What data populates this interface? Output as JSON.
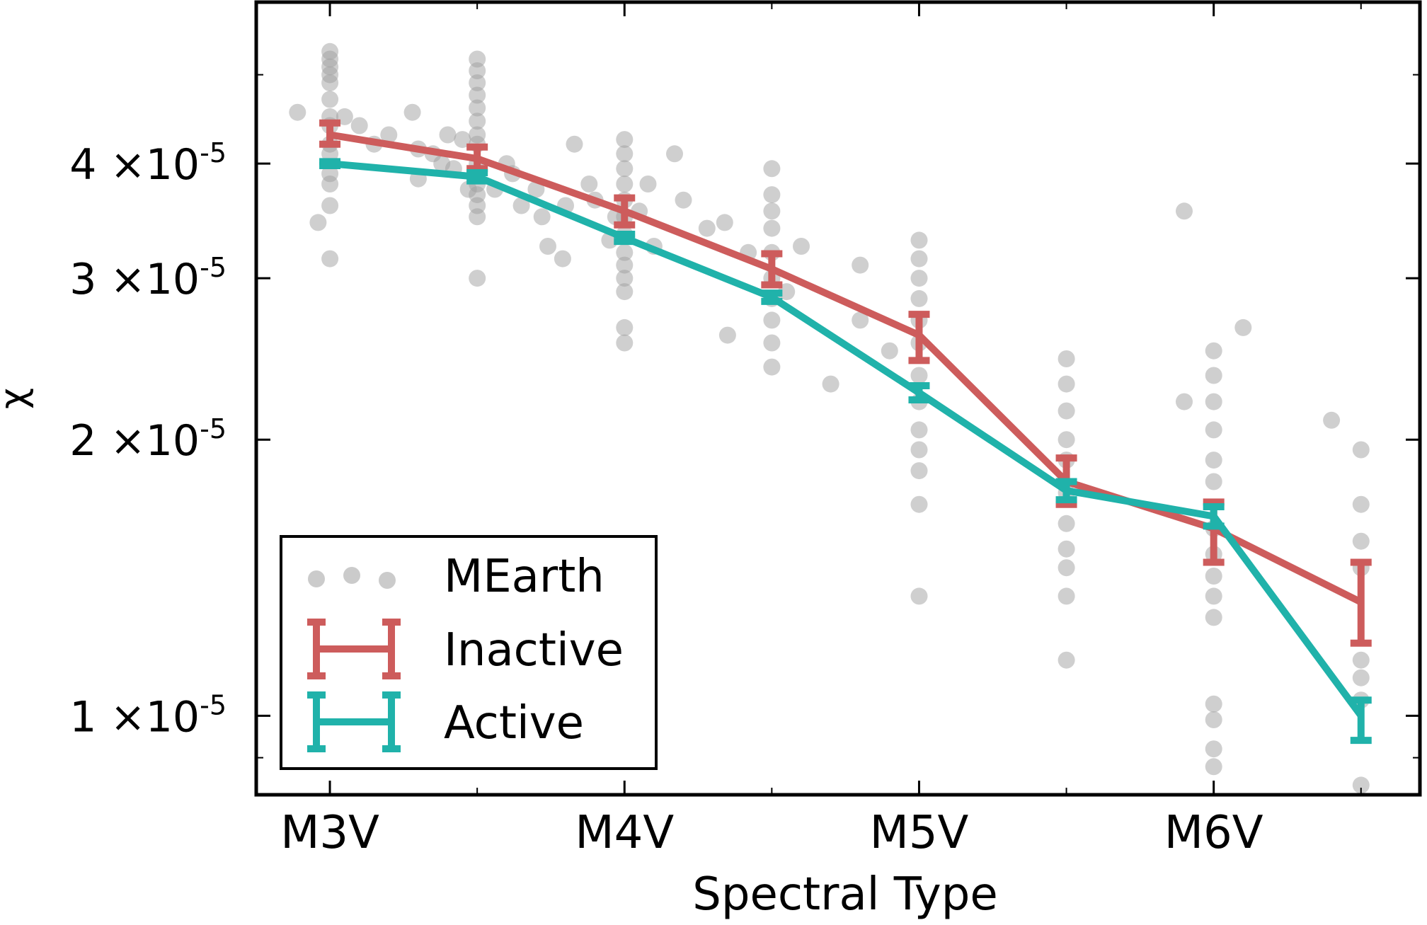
{
  "chart_data": {
    "type": "line",
    "xlabel": "Spectral Type",
    "ylabel": "χ",
    "x_categories": [
      "M3V",
      "M4V",
      "M5V",
      "M6V"
    ],
    "xlim": [
      -0.25,
      3.7
    ],
    "yscale": "log",
    "ylim": [
      8.2e-06,
      6e-05
    ],
    "yticks": [
      {
        "value": 1e-05,
        "mantissa": "1",
        "times": "×10",
        "exp": "-5"
      },
      {
        "value": 2e-05,
        "mantissa": "2",
        "times": "×10",
        "exp": "-5"
      },
      {
        "value": 3e-05,
        "mantissa": "3",
        "times": "×10",
        "exp": "-5"
      },
      {
        "value": 4e-05,
        "mantissa": "4",
        "times": "×10",
        "exp": "-5"
      }
    ],
    "legend": {
      "position": "lower-left",
      "entries": [
        "MEarth",
        "Inactive",
        "Active"
      ]
    },
    "series": [
      {
        "name": "Inactive",
        "color": "#cd5c5c",
        "x": [
          0,
          0.5,
          1,
          1.5,
          2,
          2.5,
          3,
          3.5
        ],
        "y": [
          4.3e-05,
          4.05e-05,
          3.55e-05,
          3.07e-05,
          2.6e-05,
          1.8e-05,
          1.6e-05,
          1.33e-05
        ],
        "err_low": [
          1e-06,
          1e-06,
          1.2e-06,
          1.2e-06,
          1.6e-06,
          1e-06,
          1.3e-06,
          1.3e-06
        ],
        "err_high": [
          1.3e-06,
          1.2e-06,
          1.2e-06,
          1.2e-06,
          1.4e-06,
          1.1e-06,
          1.1e-06,
          1.4e-06
        ]
      },
      {
        "name": "Active",
        "color": "#20b2aa",
        "x": [
          0,
          0.5,
          1,
          1.5,
          2,
          2.5,
          3,
          3.5
        ],
        "y": [
          4e-05,
          3.87e-05,
          3.32e-05,
          2.86e-05,
          2.25e-05,
          1.76e-05,
          1.65e-05,
          1e-05
        ],
        "err_low": [
          2e-07,
          4e-07,
          3e-07,
          3e-07,
          4e-07,
          4e-07,
          4e-07,
          6e-07
        ],
        "err_high": [
          2e-07,
          4e-07,
          3e-07,
          3e-07,
          4e-07,
          4e-07,
          4e-07,
          4e-07
        ]
      }
    ],
    "scatter": {
      "name": "MEarth",
      "color": "#a0a0a0",
      "points": [
        [
          -0.11,
          4.55e-05
        ],
        [
          -0.04,
          3.45e-05
        ],
        [
          0,
          5.3e-05
        ],
        [
          0,
          5.2e-05
        ],
        [
          0,
          5.1e-05
        ],
        [
          0,
          5e-05
        ],
        [
          0,
          4.9e-05
        ],
        [
          0,
          4.7e-05
        ],
        [
          0,
          4.5e-05
        ],
        [
          0,
          4.4e-05
        ],
        [
          0,
          4.2e-05
        ],
        [
          0,
          4.1e-05
        ],
        [
          0,
          3.9e-05
        ],
        [
          0,
          3.8e-05
        ],
        [
          0,
          3.6e-05
        ],
        [
          0,
          3.15e-05
        ],
        [
          0.05,
          4.5e-05
        ],
        [
          0.1,
          4.4e-05
        ],
        [
          0.15,
          4.2e-05
        ],
        [
          0.2,
          4.3e-05
        ],
        [
          0.28,
          4.55e-05
        ],
        [
          0.3,
          4.15e-05
        ],
        [
          0.3,
          3.85e-05
        ],
        [
          0.35,
          4.1e-05
        ],
        [
          0.38,
          4e-05
        ],
        [
          0.4,
          4.3e-05
        ],
        [
          0.42,
          3.95e-05
        ],
        [
          0.45,
          4.25e-05
        ],
        [
          0.47,
          3.75e-05
        ],
        [
          0.5,
          5.2e-05
        ],
        [
          0.5,
          5.05e-05
        ],
        [
          0.5,
          4.9e-05
        ],
        [
          0.5,
          4.75e-05
        ],
        [
          0.5,
          4.6e-05
        ],
        [
          0.5,
          4.45e-05
        ],
        [
          0.5,
          4.3e-05
        ],
        [
          0.5,
          4.2e-05
        ],
        [
          0.5,
          4e-05
        ],
        [
          0.5,
          3.9e-05
        ],
        [
          0.5,
          3.8e-05
        ],
        [
          0.5,
          3.7e-05
        ],
        [
          0.5,
          3.6e-05
        ],
        [
          0.5,
          3.5e-05
        ],
        [
          0.5,
          3e-05
        ],
        [
          0.56,
          3.75e-05
        ],
        [
          0.6,
          4e-05
        ],
        [
          0.62,
          3.9e-05
        ],
        [
          0.65,
          3.6e-05
        ],
        [
          0.7,
          3.75e-05
        ],
        [
          0.72,
          3.5e-05
        ],
        [
          0.74,
          3.25e-05
        ],
        [
          0.79,
          3.15e-05
        ],
        [
          0.8,
          3.6e-05
        ],
        [
          0.83,
          4.2e-05
        ],
        [
          0.88,
          3.8e-05
        ],
        [
          0.9,
          3.65e-05
        ],
        [
          0.95,
          3.3e-05
        ],
        [
          0.97,
          3.5e-05
        ],
        [
          1,
          4.25e-05
        ],
        [
          1,
          4.1e-05
        ],
        [
          1,
          3.95e-05
        ],
        [
          1,
          3.8e-05
        ],
        [
          1,
          3.65e-05
        ],
        [
          1,
          3.5e-05
        ],
        [
          1,
          3.35e-05
        ],
        [
          1,
          3.2e-05
        ],
        [
          1,
          3.1e-05
        ],
        [
          1,
          3e-05
        ],
        [
          1,
          2.9e-05
        ],
        [
          1,
          2.65e-05
        ],
        [
          1,
          2.55e-05
        ],
        [
          1.05,
          3.55e-05
        ],
        [
          1.08,
          3.8e-05
        ],
        [
          1.1,
          3.25e-05
        ],
        [
          1.17,
          4.1e-05
        ],
        [
          1.2,
          3.65e-05
        ],
        [
          1.28,
          3.4e-05
        ],
        [
          1.34,
          3.45e-05
        ],
        [
          1.35,
          2.6e-05
        ],
        [
          1.42,
          3.2e-05
        ],
        [
          1.5,
          3.95e-05
        ],
        [
          1.5,
          3.7e-05
        ],
        [
          1.5,
          3.55e-05
        ],
        [
          1.5,
          3.4e-05
        ],
        [
          1.5,
          3.2e-05
        ],
        [
          1.5,
          3e-05
        ],
        [
          1.5,
          2.85e-05
        ],
        [
          1.5,
          2.7e-05
        ],
        [
          1.5,
          2.55e-05
        ],
        [
          1.5,
          2.4e-05
        ],
        [
          1.55,
          2.9e-05
        ],
        [
          1.6,
          3.25e-05
        ],
        [
          1.7,
          2.3e-05
        ],
        [
          1.8,
          3.1e-05
        ],
        [
          1.8,
          2.7e-05
        ],
        [
          1.9,
          2.5e-05
        ],
        [
          2,
          3.3e-05
        ],
        [
          2,
          3.15e-05
        ],
        [
          2,
          3e-05
        ],
        [
          2,
          2.85e-05
        ],
        [
          2,
          2.7e-05
        ],
        [
          2,
          2.55e-05
        ],
        [
          2,
          2.35e-05
        ],
        [
          2,
          2.2e-05
        ],
        [
          2,
          2.05e-05
        ],
        [
          2,
          1.95e-05
        ],
        [
          2,
          1.85e-05
        ],
        [
          2,
          1.7e-05
        ],
        [
          2,
          1.35e-05
        ],
        [
          2.5,
          2.45e-05
        ],
        [
          2.5,
          2.3e-05
        ],
        [
          2.5,
          2.15e-05
        ],
        [
          2.5,
          2e-05
        ],
        [
          2.5,
          1.9e-05
        ],
        [
          2.5,
          1.75e-05
        ],
        [
          2.5,
          1.62e-05
        ],
        [
          2.5,
          1.52e-05
        ],
        [
          2.5,
          1.45e-05
        ],
        [
          2.5,
          1.35e-05
        ],
        [
          2.5,
          1.15e-05
        ],
        [
          2.9,
          3.55e-05
        ],
        [
          2.9,
          2.2e-05
        ],
        [
          3.1,
          2.65e-05
        ],
        [
          3,
          2.5e-05
        ],
        [
          3,
          2.35e-05
        ],
        [
          3,
          2.2e-05
        ],
        [
          3,
          2.05e-05
        ],
        [
          3,
          1.9e-05
        ],
        [
          3,
          1.8e-05
        ],
        [
          3,
          1.6e-05
        ],
        [
          3,
          1.5e-05
        ],
        [
          3,
          1.42e-05
        ],
        [
          3,
          1.35e-05
        ],
        [
          3,
          1.28e-05
        ],
        [
          3,
          1.03e-05
        ],
        [
          3,
          9.9e-06
        ],
        [
          3,
          9.2e-06
        ],
        [
          3,
          8.8e-06
        ],
        [
          3.4,
          2.1e-05
        ],
        [
          3.5,
          1.95e-05
        ],
        [
          3.5,
          1.7e-05
        ],
        [
          3.5,
          1.55e-05
        ],
        [
          3.5,
          1.45e-05
        ],
        [
          3.5,
          1.15e-05
        ],
        [
          3.5,
          1.1e-05
        ],
        [
          3.5,
          1.04e-05
        ],
        [
          3.5,
          8.4e-06
        ]
      ]
    }
  }
}
